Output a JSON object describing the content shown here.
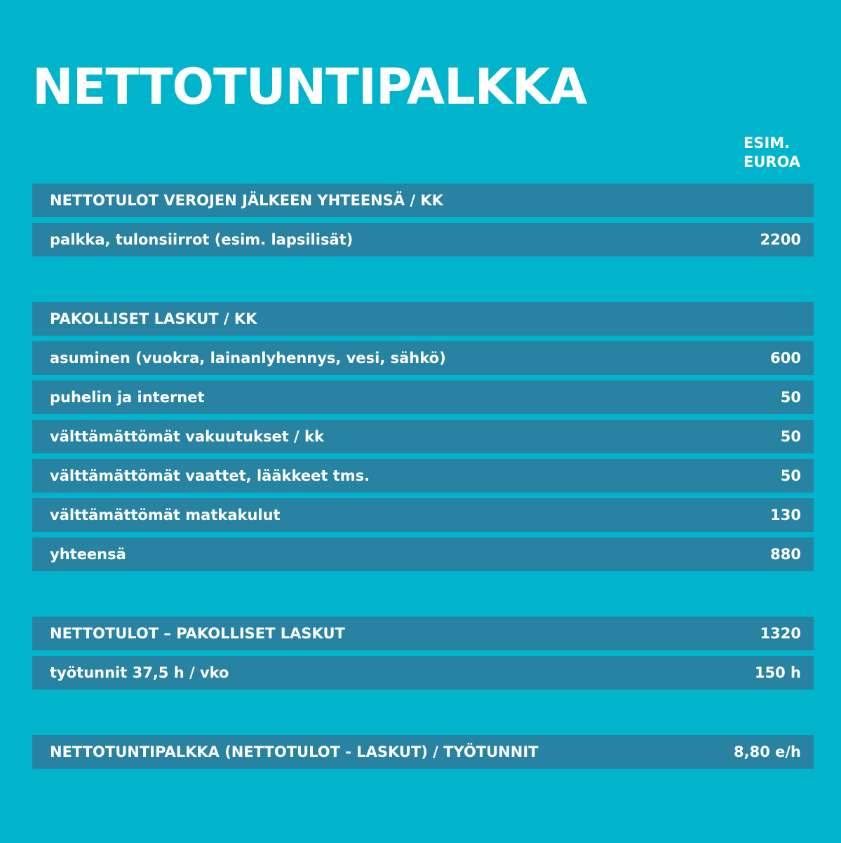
{
  "title": "NETTOTUNTIPALKKA",
  "column_header": "ESIM.\nEUROA",
  "rows": [
    {
      "label": "NETTOTULOT VEROJEN JÄLKEEN YHTEENSÄ / KK",
      "value": ""
    },
    {
      "label": "palkka, tulonsiirrot (esim. lapsilisät)",
      "value": "2200"
    },
    {
      "label": "PAKOLLISET LASKUT / KK",
      "value": ""
    },
    {
      "label": "asuminen (vuokra, lainanlyhennys, vesi, sähkö)",
      "value": "600"
    },
    {
      "label": "puhelin ja internet",
      "value": "50"
    },
    {
      "label": "välttämättömät vakuutukset / kk",
      "value": "50"
    },
    {
      "label": "välttämättömät vaattet, lääkkeet tms.",
      "value": "50"
    },
    {
      "label": "välttämättömät matkakulut",
      "value": "130"
    },
    {
      "label": "yhteensä",
      "value": "880"
    },
    {
      "label": "NETTOTULOT – PAKOLLISET LASKUT",
      "value": "1320"
    },
    {
      "label": "työtunnit 37,5 h / vko",
      "value": "150 h"
    },
    {
      "label": "NETTOTUNTIPALKKA (NETTOTULOT - LASKUT) / TYÖTUNNIT",
      "value": "8,80 e/h"
    }
  ],
  "colors": {
    "background": "#00b4cc",
    "row_background": "#2783a1",
    "text": "#ffffff"
  }
}
